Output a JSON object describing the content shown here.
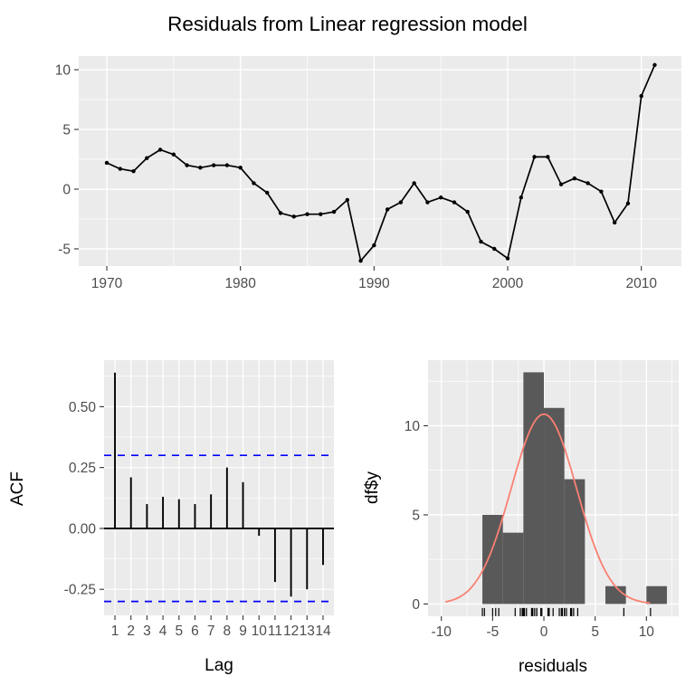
{
  "title": "Residuals from Linear regression model",
  "colors": {
    "panel_bg": "#EBEBEB",
    "grid_major": "#FFFFFF",
    "grid_minor": "#FFFFFF",
    "tick_mark": "#333333",
    "tick_text": "#4D4D4D",
    "series": "#000000",
    "confidence_line": "#0000FF",
    "bar_fill": "#595959",
    "normal_curve": "#FA8072"
  },
  "chart_data": [
    {
      "type": "line",
      "title": "Residuals from Linear regression model",
      "xlabel": "",
      "ylabel": "",
      "x": [
        1970,
        1971,
        1972,
        1973,
        1974,
        1975,
        1976,
        1977,
        1978,
        1979,
        1980,
        1981,
        1982,
        1983,
        1984,
        1985,
        1986,
        1987,
        1988,
        1989,
        1990,
        1991,
        1992,
        1993,
        1994,
        1995,
        1996,
        1997,
        1998,
        1999,
        2000,
        2001,
        2002,
        2003,
        2004,
        2005,
        2006,
        2007,
        2008,
        2009,
        2010,
        2011
      ],
      "y": [
        2.2,
        1.7,
        1.5,
        2.6,
        3.3,
        2.9,
        2.0,
        1.8,
        2.0,
        2.0,
        1.8,
        0.5,
        -0.3,
        -2.0,
        -2.3,
        -2.1,
        -2.1,
        -1.9,
        -0.9,
        -6.0,
        -4.7,
        -1.7,
        -1.1,
        0.5,
        -1.1,
        -0.7,
        -1.1,
        -1.9,
        -4.4,
        -5.0,
        -5.8,
        -0.7,
        2.7,
        2.7,
        0.4,
        0.9,
        0.5,
        -0.2,
        -2.8,
        -1.2,
        7.8,
        10.4
      ],
      "xlim": [
        1967.9,
        2013.0
      ],
      "ylim": [
        -6.44,
        11.14
      ],
      "xticks": {
        "values": [
          1970,
          1980,
          1990,
          2000,
          2010
        ],
        "labels": [
          "1970",
          "1980",
          "1990",
          "2000",
          "2010"
        ]
      },
      "yticks": {
        "values": [
          -5,
          0,
          5,
          10
        ],
        "labels": [
          "-5",
          "0",
          "5",
          "10"
        ]
      },
      "xminor": [
        1975,
        1985,
        1995,
        2005
      ],
      "yminor": [
        -2.5,
        2.5,
        7.5
      ],
      "grid": true
    },
    {
      "type": "bar",
      "title": "",
      "xlabel": "Lag",
      "ylabel": "ACF",
      "lags": [
        1,
        2,
        3,
        4,
        5,
        6,
        7,
        8,
        9,
        10,
        11,
        12,
        13,
        14
      ],
      "values": [
        0.64,
        0.21,
        0.1,
        0.13,
        0.12,
        0.1,
        0.14,
        0.25,
        0.19,
        -0.03,
        -0.22,
        -0.28,
        -0.25,
        -0.15
      ],
      "confidence_bounds": [
        0.3,
        -0.3
      ],
      "xlim": [
        0.32,
        14.68
      ],
      "ylim": [
        -0.357,
        0.691
      ],
      "xticks": {
        "values": [
          1,
          2,
          3,
          4,
          5,
          6,
          7,
          8,
          9,
          10,
          11,
          12,
          13,
          14
        ],
        "labels": [
          "1",
          "2",
          "3",
          "4",
          "5",
          "6",
          "7",
          "8",
          "9",
          "10",
          "11",
          "12",
          "13",
          "14"
        ]
      },
      "yticks": {
        "values": [
          -0.25,
          0,
          0.25,
          0.5
        ],
        "labels": [
          "-0.25",
          "0.00",
          "0.25",
          "0.50"
        ]
      },
      "yminor": [
        -0.125,
        0.125,
        0.375,
        0.625
      ],
      "grid": true
    },
    {
      "type": "histogram",
      "title": "",
      "xlabel": "residuals",
      "ylabel": "df$y",
      "bins": [
        {
          "x0": -6,
          "x1": -4,
          "count": 5
        },
        {
          "x0": -4,
          "x1": -2,
          "count": 4
        },
        {
          "x0": -2,
          "x1": 0,
          "count": 13
        },
        {
          "x0": 0,
          "x1": 2,
          "count": 11
        },
        {
          "x0": 2,
          "x1": 4,
          "count": 7
        },
        {
          "x0": 6,
          "x1": 8,
          "count": 1
        },
        {
          "x0": 10,
          "x1": 12,
          "count": 1
        }
      ],
      "normal_curve": {
        "mean": 0,
        "sd": 3.2,
        "peak": 10.65,
        "range": [
          -9.6,
          10.45
        ]
      },
      "rug": [
        2.2,
        1.7,
        1.5,
        2.6,
        3.3,
        2.9,
        2.0,
        1.8,
        2.0,
        2.0,
        1.8,
        0.5,
        -0.3,
        -2.0,
        -2.3,
        -2.1,
        -2.1,
        -1.9,
        -0.9,
        -6.0,
        -4.7,
        -1.7,
        -1.1,
        0.5,
        -1.1,
        -0.7,
        -1.1,
        -1.9,
        -4.4,
        -5.0,
        -5.8,
        -0.7,
        2.7,
        2.7,
        0.4,
        0.9,
        0.5,
        -0.2,
        -2.8,
        -1.2,
        7.8,
        10.4
      ],
      "xlim": [
        -11.3,
        13.15
      ],
      "ylim": [
        -0.69,
        13.68
      ],
      "xticks": {
        "values": [
          -10,
          -5,
          0,
          5,
          10
        ],
        "labels": [
          "-10",
          "-5",
          "0",
          "5",
          "10"
        ]
      },
      "yticks": {
        "values": [
          0,
          5,
          10
        ],
        "labels": [
          "0",
          "5",
          "10"
        ]
      },
      "xminor": [
        -7.5,
        -2.5,
        2.5,
        7.5,
        12.5
      ],
      "yminor": [
        2.5,
        7.5,
        12.5
      ],
      "grid": true
    }
  ]
}
